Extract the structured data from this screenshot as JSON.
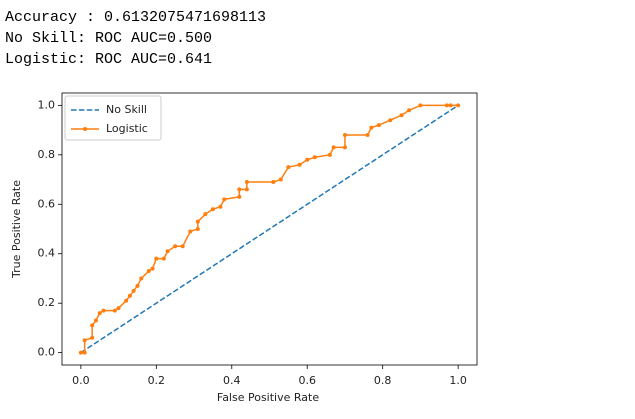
{
  "output_lines": [
    "Accuracy : 0.6132075471698113",
    "No Skill: ROC AUC=0.500",
    "Logistic: ROC AUC=0.641"
  ],
  "chart_data": {
    "type": "line",
    "xlabel": "False Positive Rate",
    "ylabel": "True Positive Rate",
    "xlim": [
      -0.05,
      1.05
    ],
    "ylim": [
      -0.05,
      1.05
    ],
    "xticks": [
      {
        "value": 0,
        "label": "0.0"
      },
      0.2,
      0.4,
      0.6,
      0.8,
      {
        "value": 1,
        "label": "1.0"
      }
    ],
    "yticks": [
      {
        "value": 0,
        "label": "0.0"
      },
      0.2,
      0.4,
      0.6,
      0.8,
      {
        "value": 1,
        "label": "1.0"
      }
    ],
    "legend": "upper left",
    "series": [
      {
        "name": "No Skill",
        "color": "#1f77b4",
        "dashed": true,
        "x": [
          0,
          1
        ],
        "values": [
          0,
          1
        ]
      },
      {
        "name": "Logistic",
        "color": "#ff7f0e",
        "markers": true,
        "x": [
          0,
          0.01,
          0.01,
          0.03,
          0.03,
          0.04,
          0.05,
          0.06,
          0.09,
          0.1,
          0.12,
          0.13,
          0.14,
          0.15,
          0.16,
          0.18,
          0.19,
          0.2,
          0.22,
          0.23,
          0.25,
          0.27,
          0.29,
          0.31,
          0.31,
          0.33,
          0.35,
          0.37,
          0.38,
          0.42,
          0.42,
          0.44,
          0.44,
          0.51,
          0.53,
          0.55,
          0.58,
          0.6,
          0.62,
          0.66,
          0.67,
          0.7,
          0.7,
          0.76,
          0.77,
          0.79,
          0.82,
          0.85,
          0.87,
          0.9,
          0.97,
          0.98,
          1
        ],
        "values": [
          0,
          0,
          0.05,
          0.06,
          0.11,
          0.13,
          0.16,
          0.17,
          0.17,
          0.18,
          0.21,
          0.23,
          0.25,
          0.27,
          0.3,
          0.33,
          0.34,
          0.38,
          0.38,
          0.41,
          0.43,
          0.43,
          0.49,
          0.5,
          0.53,
          0.56,
          0.58,
          0.59,
          0.62,
          0.63,
          0.66,
          0.66,
          0.69,
          0.69,
          0.7,
          0.75,
          0.76,
          0.78,
          0.79,
          0.8,
          0.83,
          0.83,
          0.88,
          0.88,
          0.91,
          0.92,
          0.94,
          0.96,
          0.98,
          1,
          1,
          1,
          1
        ]
      }
    ]
  }
}
